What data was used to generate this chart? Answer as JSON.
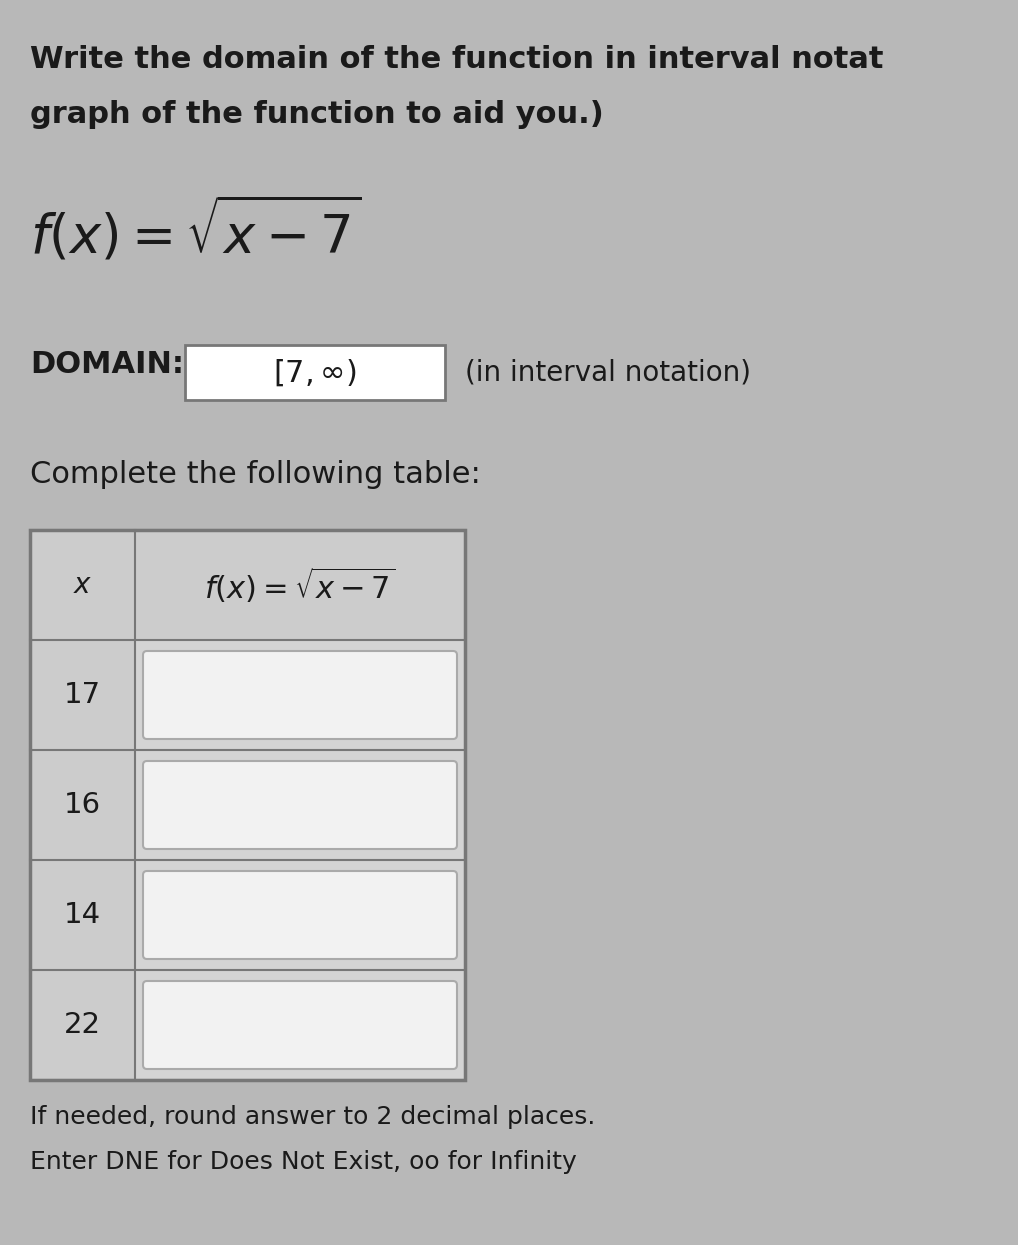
{
  "background_color": "#b8b8b8",
  "title_line1": "Write the domain of the function in interval notat",
  "title_line2": "graph of the function to aid you.)",
  "domain_label": "DOMAIN:",
  "domain_suffix": "(in interval notation)",
  "table_title": "Complete the following table:",
  "table_rows": [
    17,
    16,
    14,
    22
  ],
  "footer_line1": "If needed, round answer to 2 decimal places.",
  "footer_line2": "Enter DNE for Does Not Exist, oo for Infinity",
  "text_color": "#1a1a1a",
  "box_edge": "#999999",
  "header_fill": "#cccccc",
  "table_bg": "#d4d4d4",
  "table_border": "#777777",
  "input_box_fill": "#f2f2f2",
  "input_box_edge": "#aaaaaa"
}
